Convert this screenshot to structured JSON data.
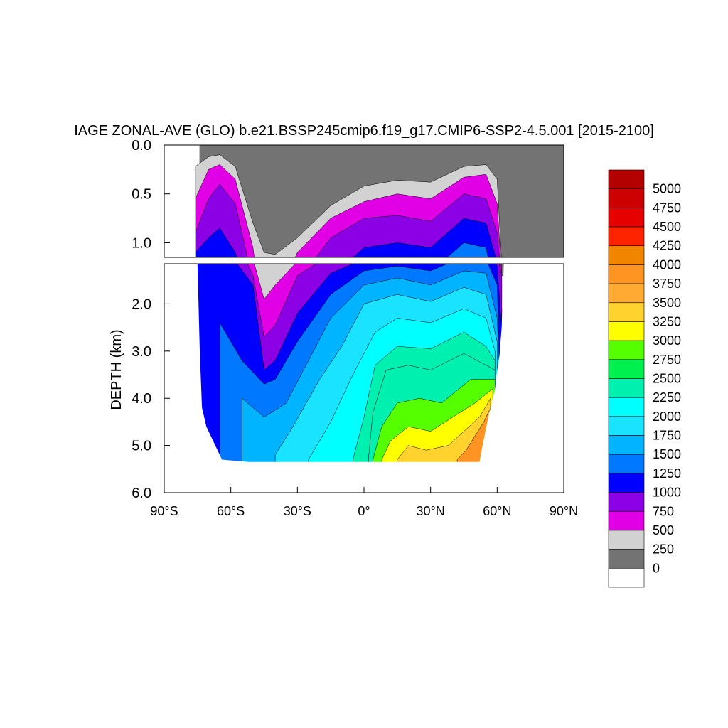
{
  "chart_data": {
    "type": "heatmap",
    "title": "IAGE ZONAL-AVE (GLO) b.e21.BSSP245cmip6.f19_g17.CMIP6-SSP2-4.5.001 [2015-2100]",
    "ylabel": "DEPTH (km)",
    "xlabel": "",
    "xlim": [
      -90,
      90
    ],
    "upper_panel": {
      "ylim": [
        0.0,
        1.15
      ],
      "yticks": [
        "0.0",
        "0.5",
        "1.0"
      ],
      "ytick_values": [
        0.0,
        0.5,
        1.0
      ]
    },
    "lower_panel": {
      "ylim": [
        1.15,
        6.0
      ],
      "yticks": [
        "2.0",
        "3.0",
        "4.0",
        "5.0",
        "6.0"
      ],
      "ytick_values": [
        2.0,
        3.0,
        4.0,
        5.0,
        6.0
      ]
    },
    "xticks": [
      "90°S",
      "60°S",
      "30°S",
      "0°",
      "30°N",
      "60°N",
      "90°N"
    ],
    "xtick_values": [
      -90,
      -60,
      -30,
      0,
      30,
      60,
      90
    ],
    "colorbar": {
      "levels": [
        "5000",
        "4750",
        "4500",
        "4250",
        "4000",
        "3750",
        "3500",
        "3250",
        "3000",
        "2750",
        "2500",
        "2250",
        "2000",
        "1750",
        "1500",
        "1250",
        "1000",
        "750",
        "500",
        "250",
        "0"
      ],
      "colors": [
        "#b30000",
        "#cc0000",
        "#e60000",
        "#ff2400",
        "#f28500",
        "#ff9422",
        "#ffab33",
        "#ffd22e",
        "#ffff00",
        "#55ff00",
        "#00f050",
        "#00f0b0",
        "#00ffff",
        "#19e3ff",
        "#00b4ff",
        "#0078ff",
        "#0000ff",
        "#8c00e6",
        "#e100e6",
        "#d2d2d2",
        "#737373",
        "#ffffff"
      ]
    },
    "regions": {
      "land_color": "#ffffff",
      "shallow_age_color": "#737373"
    },
    "profiles": {
      "lat": [
        -90,
        -75,
        -70,
        -65,
        -60,
        -55,
        -50,
        -45,
        -40,
        -35,
        -30,
        -25,
        -20,
        -15,
        -10,
        -5,
        0,
        5,
        10,
        15,
        20,
        25,
        30,
        35,
        40,
        45,
        50,
        55,
        58,
        60,
        62
      ],
      "contour_depths": {
        "250": [
          null,
          0.35,
          0.12,
          0.1,
          0.18,
          0.45,
          0.85,
          1.1,
          1.12,
          1.05,
          0.95,
          0.85,
          0.72,
          0.62,
          0.55,
          0.48,
          0.42,
          0.38,
          0.35,
          0.36,
          0.4,
          0.42,
          0.38,
          0.32,
          0.28,
          0.22,
          0.18,
          0.2,
          0.35,
          1.2,
          null
        ],
        "500": [
          null,
          0.8,
          0.25,
          0.2,
          0.3,
          0.6,
          1.05,
          1.9,
          1.6,
          1.25,
          1.1,
          0.95,
          0.85,
          0.75,
          0.7,
          0.65,
          0.58,
          0.52,
          0.48,
          0.5,
          0.55,
          0.6,
          0.55,
          0.48,
          0.4,
          0.33,
          0.28,
          0.3,
          0.6,
          1.3,
          null
        ],
        "750": [
          null,
          1.1,
          0.55,
          0.4,
          0.55,
          0.95,
          1.4,
          2.7,
          2.45,
          1.8,
          1.4,
          1.2,
          1.05,
          0.95,
          0.88,
          0.8,
          0.75,
          0.7,
          0.68,
          0.72,
          0.78,
          0.82,
          0.78,
          0.7,
          0.6,
          0.5,
          0.45,
          0.55,
          0.9,
          1.4,
          null
        ]
      }
    }
  }
}
